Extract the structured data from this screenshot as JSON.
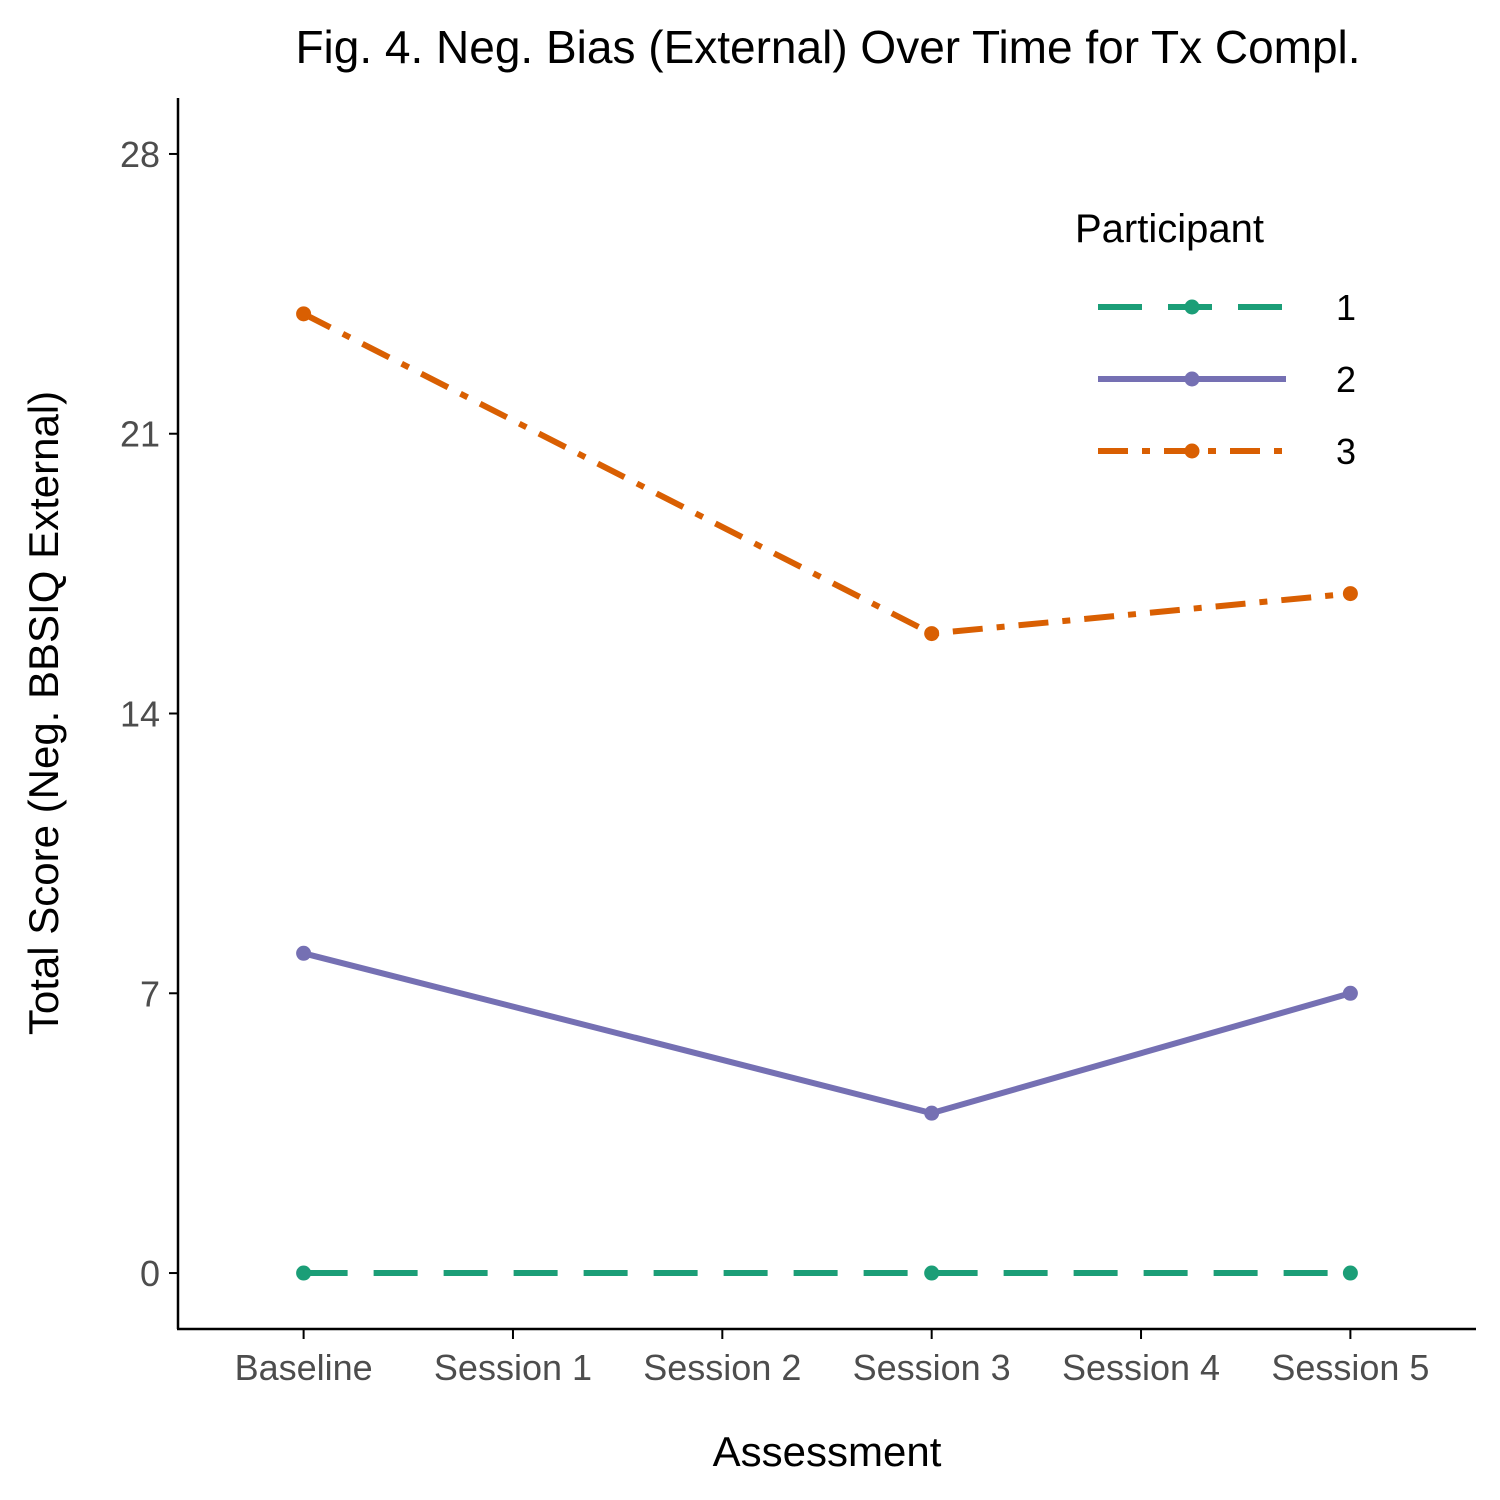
{
  "chart_data": {
    "type": "line",
    "title": "Fig. 4. Neg. Bias (External) Over Time for Tx Compl.",
    "xlabel": "Assessment",
    "ylabel": "Total Score (Neg. BBSIQ External)",
    "categories": [
      "Baseline",
      "Session 1",
      "Session 2",
      "Session 3",
      "Session 4",
      "Session 5"
    ],
    "ylim": [
      -1.4,
      29.4
    ],
    "yticks": [
      0,
      7,
      14,
      21,
      28
    ],
    "ytick_labels": [
      "0",
      "7",
      "14",
      "21",
      "28"
    ],
    "grid": false,
    "legend": {
      "title": "Participant",
      "placement": "top-right"
    },
    "series": [
      {
        "name": "1",
        "color": "#1b9e77",
        "dash": "long-dash",
        "points": [
          [
            "Baseline",
            0
          ],
          [
            "Session 3",
            0
          ],
          [
            "Session 5",
            0
          ]
        ]
      },
      {
        "name": "2",
        "color": "#7570b3",
        "dash": "solid",
        "points": [
          [
            "Baseline",
            8
          ],
          [
            "Session 3",
            4
          ],
          [
            "Session 5",
            7
          ]
        ]
      },
      {
        "name": "3",
        "color": "#d95f02",
        "dash": "dot-dash",
        "points": [
          [
            "Baseline",
            24
          ],
          [
            "Session 3",
            16
          ],
          [
            "Session 5",
            17
          ]
        ]
      }
    ]
  }
}
